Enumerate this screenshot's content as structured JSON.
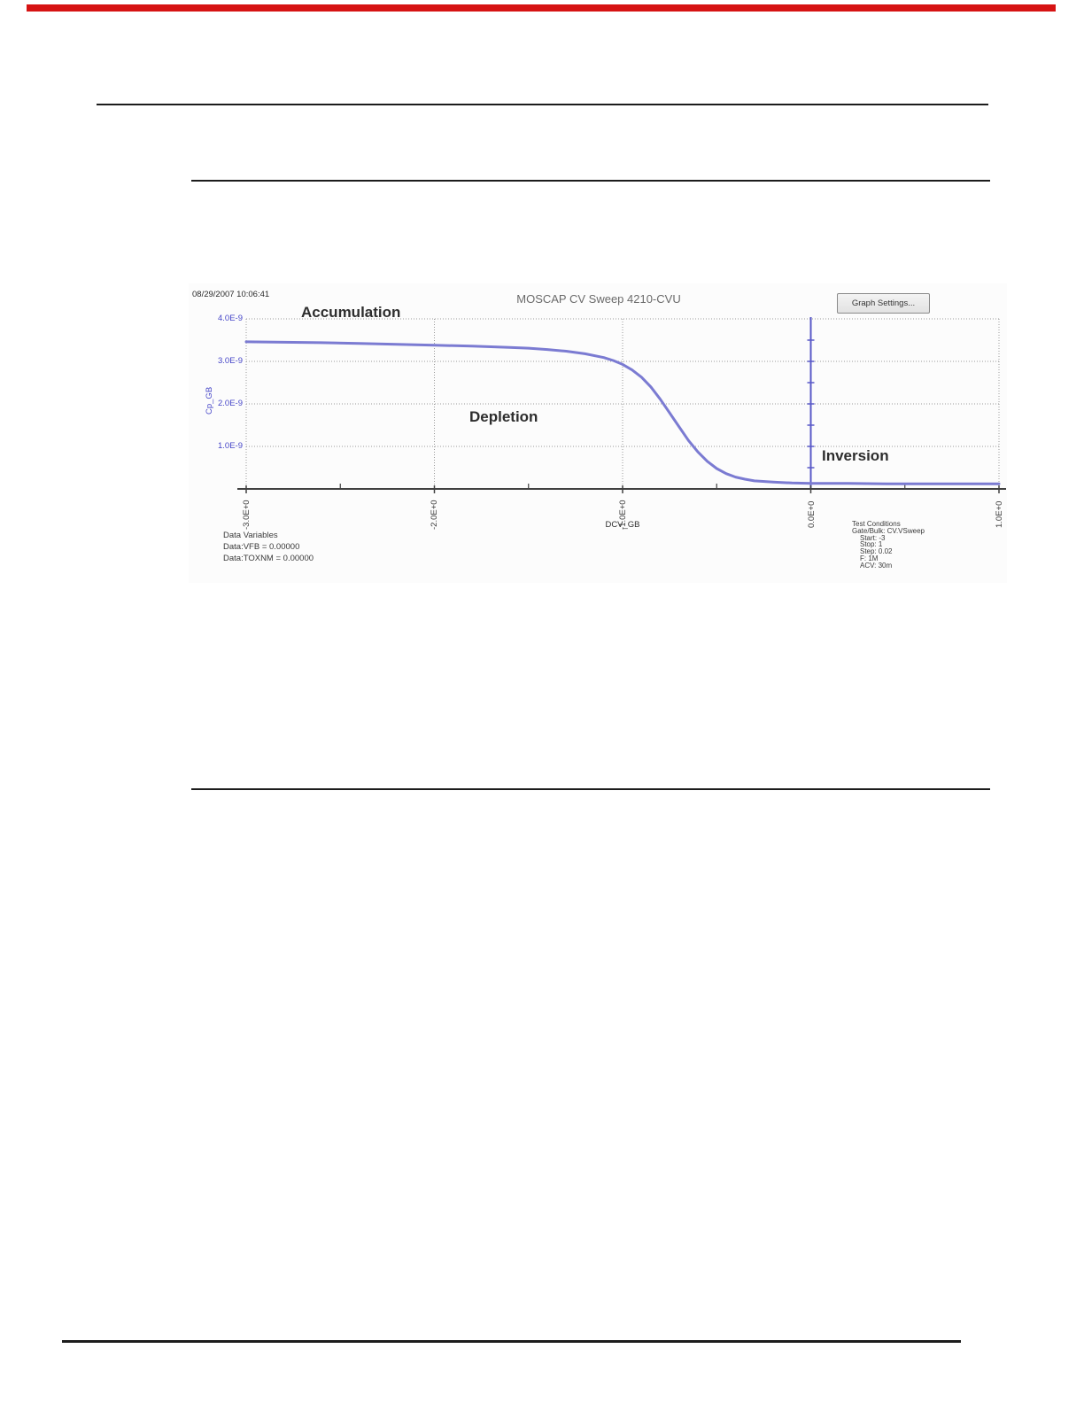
{
  "page": {
    "top_bar_color": "#d61313"
  },
  "chart": {
    "timestamp": "08/29/2007 10:06:41",
    "title": "MOSCAP CV Sweep 4210-CVU",
    "graph_settings_button": "Graph Settings...",
    "annotations": {
      "accumulation": "Accumulation",
      "depletion": "Depletion",
      "inversion": "Inversion"
    },
    "y_axis_label": "Cp_GB",
    "x_axis_label": "DCV_GB",
    "data_variables": [
      "Data Variables",
      "Data:VFB = 0.00000",
      "Data:TOXNM = 0.00000"
    ],
    "test_conditions": [
      "Test Conditions",
      "Gate/Bulk: CV.VSweep",
      "Start: -3",
      "Stop: 1",
      "Step: 0.02",
      "F: 1M",
      "ACV: 30m"
    ],
    "accent_blue": "#4646c8",
    "curve_color": "#7b7bd2",
    "marker_line_color": "#5a5ac8",
    "grid_color": "#9a9a9a",
    "axis_color": "#404040"
  },
  "chart_data": {
    "type": "line",
    "title": "MOSCAP CV Sweep 4210-CVU",
    "xlabel": "DCV_GB",
    "ylabel": "Cp_GB",
    "xlim": [
      -3,
      1
    ],
    "ylim": [
      0,
      4e-09
    ],
    "x_ticks": [
      -3,
      -2,
      -1,
      0,
      1
    ],
    "x_tick_labels": [
      "-3.0E+0",
      "-2.0E+0",
      "-1.0E+0",
      "0.0E+0",
      "1.0E+0"
    ],
    "y_ticks": [
      4e-09,
      3e-09,
      2e-09,
      1e-09
    ],
    "y_tick_labels": [
      "4.0E-9",
      "3.0E-9",
      "2.0E-9",
      "1.0E-9"
    ],
    "grid": true,
    "legend": "none",
    "marker_line_x": 0,
    "annotations": [
      {
        "text": "Accumulation",
        "x": -2.45,
        "y": 3.95e-09
      },
      {
        "text": "Depletion",
        "x": -1.6,
        "y": 1.65e-09
      },
      {
        "text": "Inversion",
        "x": 0.1,
        "y": 7.5e-10
      }
    ],
    "series": [
      {
        "name": "Cp_GB vs DCV_GB",
        "points": [
          [
            -3.0,
            3.46e-09
          ],
          [
            -2.8,
            3.45e-09
          ],
          [
            -2.6,
            3.44e-09
          ],
          [
            -2.4,
            3.42e-09
          ],
          [
            -2.2,
            3.4e-09
          ],
          [
            -2.0,
            3.38e-09
          ],
          [
            -1.8,
            3.36e-09
          ],
          [
            -1.6,
            3.33e-09
          ],
          [
            -1.5,
            3.31e-09
          ],
          [
            -1.4,
            3.28e-09
          ],
          [
            -1.3,
            3.24e-09
          ],
          [
            -1.2,
            3.18e-09
          ],
          [
            -1.1,
            3.09e-09
          ],
          [
            -1.05,
            3.02e-09
          ],
          [
            -1.0,
            2.93e-09
          ],
          [
            -0.95,
            2.8e-09
          ],
          [
            -0.9,
            2.63e-09
          ],
          [
            -0.85,
            2.4e-09
          ],
          [
            -0.8,
            2.11e-09
          ],
          [
            -0.75,
            1.79e-09
          ],
          [
            -0.7,
            1.46e-09
          ],
          [
            -0.65,
            1.14e-09
          ],
          [
            -0.6,
            8.7e-10
          ],
          [
            -0.55,
            6.5e-10
          ],
          [
            -0.5,
            4.8e-10
          ],
          [
            -0.45,
            3.6e-10
          ],
          [
            -0.4,
            2.8e-10
          ],
          [
            -0.35,
            2.3e-10
          ],
          [
            -0.3,
            1.9e-10
          ],
          [
            -0.2,
            1.6e-10
          ],
          [
            -0.1,
            1.4e-10
          ],
          [
            0.0,
            1.3e-10
          ],
          [
            0.2,
            1.3e-10
          ],
          [
            0.4,
            1.2e-10
          ],
          [
            0.6,
            1.2e-10
          ],
          [
            0.8,
            1.2e-10
          ],
          [
            1.0,
            1.2e-10
          ]
        ]
      }
    ]
  }
}
